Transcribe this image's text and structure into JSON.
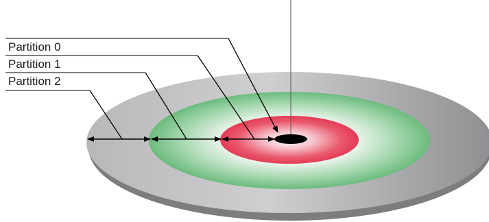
{
  "labels": {
    "partition0": "Partition 0",
    "partition1": "Partition 1",
    "partition2": "Partition 2"
  },
  "colors": {
    "platter_edge": "#8c8c8e",
    "platter_face": "#c4c4c6",
    "zone_outer": "#74c084",
    "zone_inner": "#e8485e",
    "spindle_hole": "#000000",
    "line": "#000000"
  }
}
